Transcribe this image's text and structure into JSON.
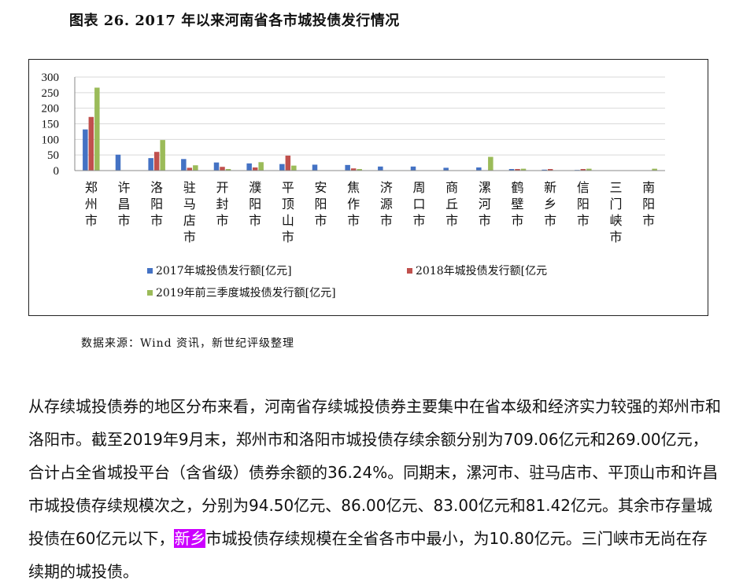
{
  "figure_title": "图表 26. 2017 年以来河南省各市城投债发行情况",
  "source": "数据来源：Wind 资讯，新世纪评级整理",
  "paragraph": {
    "before": "从存续城投债券的地区分布来看，河南省存续城投债券主要集中在省本级和经济实力较强的郑州市和洛阳市。截至2019年9月末，郑州市和洛阳市城投债存续余额分别为709.06亿元和269.00亿元，合计占全省城投平台（含省级）债券余额的36.24%。同期末，漯河市、驻马店市、平顶山市和许昌市城投债存续规模次之，分别为94.50亿元、86.00亿元、83.00亿元和81.42亿元。其余市存量城投债在60亿元以下，",
    "highlight": "新乡",
    "after": "市城投债存续规模在全省各市中最小，为10.80亿元。三门峡市无尚在存续期的城投债。"
  },
  "chart_data": {
    "type": "bar",
    "ylim": [
      0,
      300
    ],
    "yticks": [
      "0",
      "50",
      "100",
      "150",
      "200",
      "250",
      "300"
    ],
    "grid": true,
    "legend_position": "bottom",
    "categories": [
      "郑州市",
      "许昌市",
      "洛阳市",
      "驻马店市",
      "开封市",
      "濮阳市",
      "平顶山市",
      "安阳市",
      "焦作市",
      "济源市",
      "周口市",
      "商丘市",
      "漯河市",
      "鹤壁市",
      "新乡市",
      "信阳市",
      "三门峡市",
      "南阳市"
    ],
    "series": [
      {
        "name": "2017年城投债发行额[亿元]",
        "color": "#4472c4",
        "values": [
          132,
          51,
          40,
          37,
          26,
          23,
          21,
          19,
          18,
          13,
          13,
          9,
          10,
          5,
          3,
          2,
          0,
          0
        ]
      },
      {
        "name": "2018年城投债发行额[亿元",
        "color": "#c0504d",
        "values": [
          172,
          0,
          60,
          9,
          12,
          10,
          48,
          0,
          7,
          0,
          0,
          0,
          0,
          5,
          5,
          5,
          0,
          0
        ]
      },
      {
        "name": "2019年前三季度城投债发行额[亿元]",
        "color": "#9bbb59",
        "values": [
          266,
          0,
          98,
          17,
          5,
          27,
          16,
          0,
          5,
          0,
          0,
          0,
          44,
          6,
          0,
          6,
          0,
          6
        ]
      }
    ]
  }
}
